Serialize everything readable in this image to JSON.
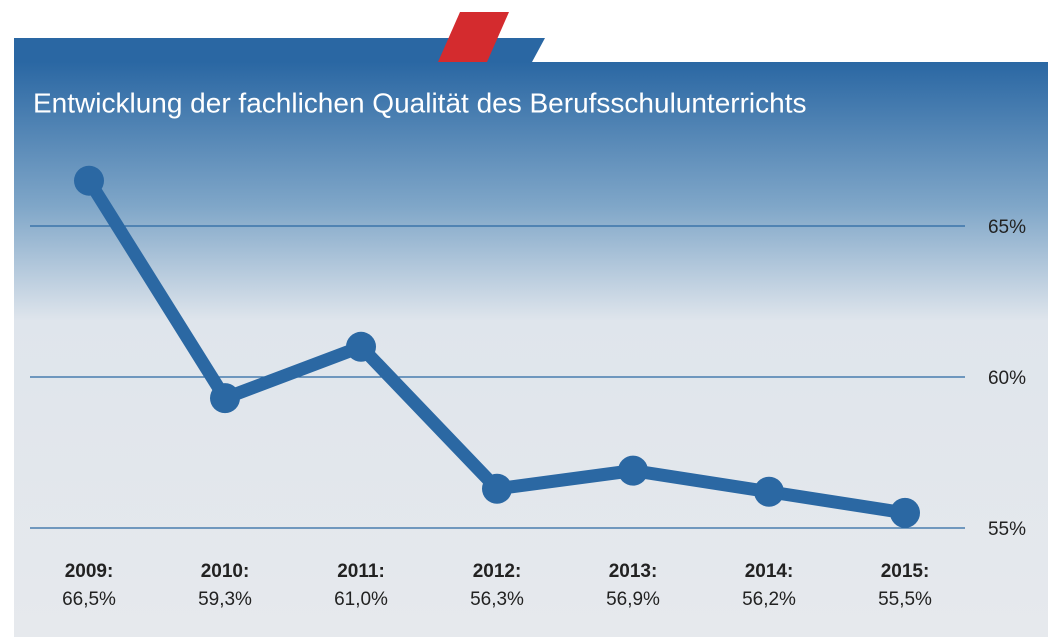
{
  "chart_data": {
    "type": "line",
    "title": "Entwicklung der fachlichen Qualität des Berufsschulunterrichts",
    "categories": [
      "2009:",
      "2010:",
      "2011:",
      "2012:",
      "2013:",
      "2014:",
      "2015:"
    ],
    "series": [
      {
        "color": "#2b68a3",
        "values": [
          66.5,
          59.3,
          61.0,
          56.3,
          56.9,
          56.2,
          55.5
        ],
        "value_labels": [
          "66,5%",
          "59,3%",
          "61,0%",
          "56,3%",
          "56,9%",
          "56,2%",
          "55,5%"
        ]
      }
    ],
    "ylim": [
      54,
      67
    ],
    "yticks": [
      {
        "value": 55,
        "label": "55%"
      },
      {
        "value": 60,
        "label": "60%"
      },
      {
        "value": 65,
        "label": "65%"
      }
    ],
    "grid": true
  }
}
